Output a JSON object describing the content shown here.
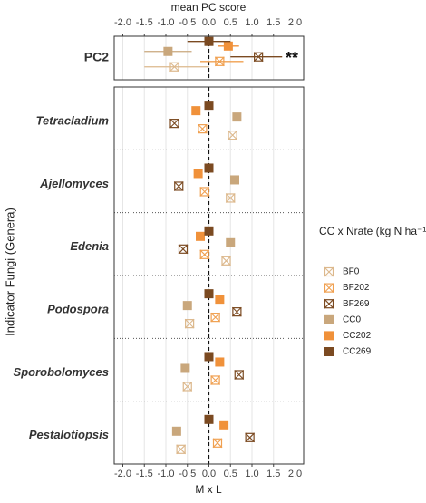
{
  "chart_data": [
    {
      "type": "errorpoint",
      "title": "mean PC score",
      "categories": [
        "PC2"
      ],
      "annotation": "**",
      "xlim": [
        -2.2,
        2.2
      ],
      "xticks": [
        {
          "value": -2,
          "label": "-2.0"
        },
        {
          "value": -1.5,
          "label": "-1.5"
        },
        {
          "value": -1,
          "label": "-1.0"
        },
        {
          "value": -0.5,
          "label": "-0.5"
        },
        {
          "value": 0,
          "label": "0.0"
        },
        {
          "value": 0.5,
          "label": "0.5"
        },
        {
          "value": 1,
          "label": "1.0"
        },
        {
          "value": 1.5,
          "label": "1.5"
        },
        {
          "value": 2,
          "label": "2.0"
        }
      ],
      "series": [
        {
          "name": "BF0",
          "color": "#dcb88c",
          "shape": "crossed-square",
          "values": [
            -0.8
          ],
          "error_low": [
            -1.5
          ],
          "error_high": [
            0
          ]
        },
        {
          "name": "BF202",
          "color": "#f0a050",
          "shape": "crossed-square",
          "values": [
            0.25
          ],
          "error_low": [
            -0.2
          ],
          "error_high": [
            0.8
          ]
        },
        {
          "name": "BF269",
          "color": "#7b4a21",
          "shape": "crossed-square",
          "values": [
            1.15
          ],
          "error_low": [
            0.5
          ],
          "error_high": [
            1.7
          ]
        },
        {
          "name": "CC0",
          "color": "#c9a77c",
          "shape": "square",
          "values": [
            -0.95
          ],
          "error_low": [
            -1.5
          ],
          "error_high": [
            -0.4
          ]
        },
        {
          "name": "CC202",
          "color": "#f0913a",
          "shape": "square",
          "values": [
            0.45
          ],
          "error_low": [
            0.2
          ],
          "error_high": [
            0.7
          ]
        },
        {
          "name": "CC269",
          "color": "#7b4a21",
          "shape": "square",
          "values": [
            0
          ],
          "error_low": [
            -0.5
          ],
          "error_high": [
            0.5
          ]
        }
      ]
    },
    {
      "type": "dot",
      "xlabel": "M x L",
      "ylabel": "Indicator Fungi (Genera)",
      "legend_title": "CC x Nrate (kg N ha⁻¹)",
      "legend": "right",
      "categories": [
        "Tetracladium",
        "Ajellomyces",
        "Edenia",
        "Podospora",
        "Sporobolomyces",
        "Pestalotiopsis"
      ],
      "xlim": [
        -2.2,
        2.2
      ],
      "xticks": [
        {
          "value": -2,
          "label": "-2.0"
        },
        {
          "value": -1.5,
          "label": "-1.5"
        },
        {
          "value": -1,
          "label": "-1.0"
        },
        {
          "value": -0.5,
          "label": "-0.5"
        },
        {
          "value": 0,
          "label": "0.0"
        },
        {
          "value": 0.5,
          "label": "0.5"
        },
        {
          "value": 1,
          "label": "1.0"
        },
        {
          "value": 1.5,
          "label": "1.5"
        },
        {
          "value": 2,
          "label": "2.0"
        }
      ],
      "series": [
        {
          "name": "BF0",
          "color": "#dcb88c",
          "shape": "crossed-square",
          "values": [
            0.55,
            0.5,
            0.4,
            -0.45,
            -0.5,
            -0.65
          ]
        },
        {
          "name": "BF202",
          "color": "#f0a050",
          "shape": "crossed-square",
          "values": [
            -0.15,
            -0.1,
            -0.1,
            0.15,
            0.15,
            0.2
          ]
        },
        {
          "name": "BF269",
          "color": "#7b4a21",
          "shape": "crossed-square",
          "values": [
            -0.8,
            -0.7,
            -0.6,
            0.65,
            0.7,
            0.95
          ]
        },
        {
          "name": "CC0",
          "color": "#c9a77c",
          "shape": "square",
          "values": [
            0.65,
            0.6,
            0.5,
            -0.5,
            -0.55,
            -0.75
          ]
        },
        {
          "name": "CC202",
          "color": "#f0913a",
          "shape": "square",
          "values": [
            -0.3,
            -0.25,
            -0.2,
            0.25,
            0.25,
            0.35
          ]
        },
        {
          "name": "CC269",
          "color": "#7b4a21",
          "shape": "square",
          "values": [
            0,
            0,
            0,
            0,
            0,
            0
          ]
        }
      ]
    }
  ]
}
